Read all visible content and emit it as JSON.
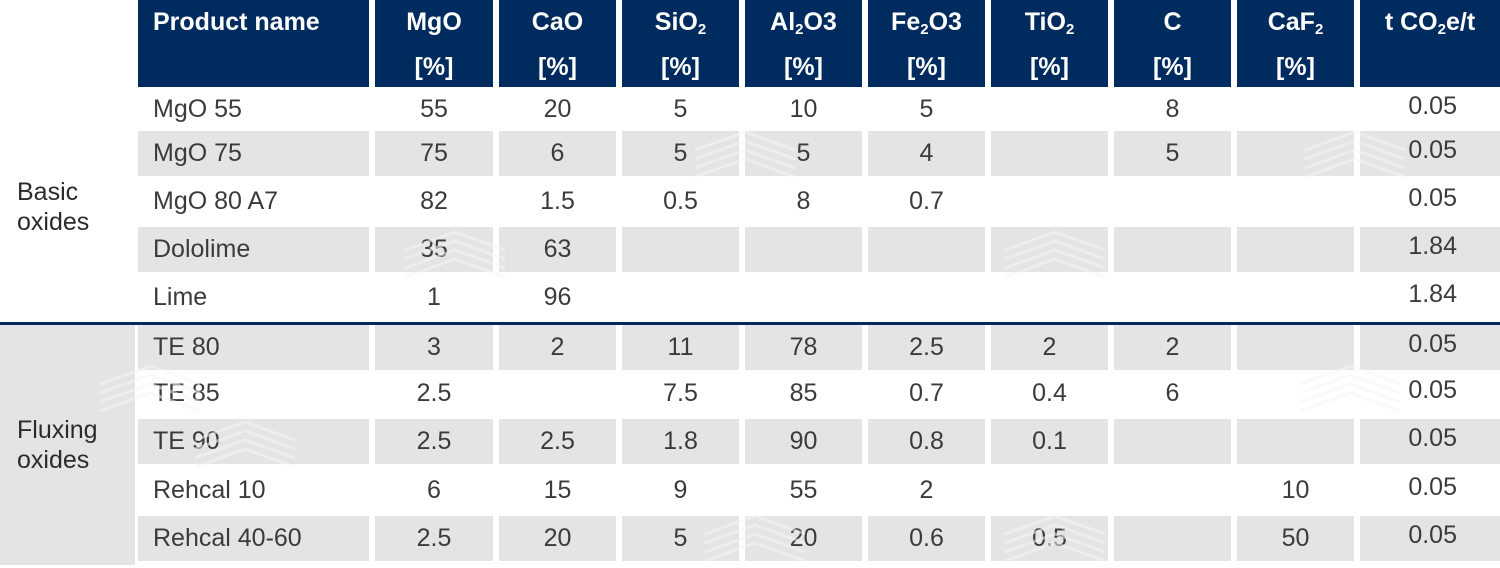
{
  "table": {
    "columns": [
      {
        "name": "Product name",
        "sub": "",
        "tail": "",
        "unit": ""
      },
      {
        "name": "MgO",
        "sub": "",
        "tail": "",
        "unit": "[%]"
      },
      {
        "name": "CaO",
        "sub": "",
        "tail": "",
        "unit": "[%]"
      },
      {
        "name": "SiO",
        "sub": "2",
        "tail": "",
        "unit": "[%]"
      },
      {
        "name": "Al",
        "sub": "2",
        "tail": "O3",
        "unit": "[%]"
      },
      {
        "name": "Fe",
        "sub": "2",
        "tail": "O3",
        "unit": "[%]"
      },
      {
        "name": "TiO",
        "sub": "2",
        "tail": "",
        "unit": "[%]"
      },
      {
        "name": "C",
        "sub": "",
        "tail": "",
        "unit": "[%]"
      },
      {
        "name": "CaF",
        "sub": "2",
        "tail": "",
        "unit": "[%]"
      },
      {
        "name": "t CO",
        "sub": "2",
        "tail": "e/t",
        "unit": ""
      }
    ],
    "groups": [
      {
        "label_line1": "Basic",
        "label_line2": "oxides"
      },
      {
        "label_line1": "Fluxing",
        "label_line2": "oxides"
      }
    ],
    "rows": [
      {
        "name": "MgO 55",
        "values": [
          "55",
          "20",
          "5",
          "10",
          "5",
          "",
          "8",
          "",
          "0.05"
        ]
      },
      {
        "name": "MgO 75",
        "values": [
          "75",
          "6",
          "5",
          "5",
          "4",
          "",
          "5",
          "",
          "0.05"
        ]
      },
      {
        "name": "MgO 80 A7",
        "values": [
          "82",
          "1.5",
          "0.5",
          "8",
          "0.7",
          "",
          "",
          "",
          "0.05"
        ]
      },
      {
        "name": "Dololime",
        "values": [
          "35",
          "63",
          "",
          "",
          "",
          "",
          "",
          "",
          "1.84"
        ]
      },
      {
        "name": "Lime",
        "values": [
          "1",
          "96",
          "",
          "",
          "",
          "",
          "",
          "",
          "1.84"
        ]
      },
      {
        "name": "TE 80",
        "values": [
          "3",
          "2",
          "11",
          "78",
          "2.5",
          "2",
          "2",
          "",
          "0.05"
        ]
      },
      {
        "name": "TE 85",
        "values": [
          "2.5",
          "",
          "7.5",
          "85",
          "0.7",
          "0.4",
          "6",
          "",
          "0.05"
        ]
      },
      {
        "name": "TE 90",
        "values": [
          "2.5",
          "2.5",
          "1.8",
          "90",
          "0.8",
          "0.1",
          "",
          "",
          "0.05"
        ]
      },
      {
        "name": "Rehcal 10",
        "values": [
          "6",
          "15",
          "9",
          "55",
          "2",
          "",
          "",
          "10",
          "0.05"
        ]
      },
      {
        "name": "Rehcal 40-60",
        "values": [
          "2.5",
          "20",
          "5",
          "20",
          "0.6",
          "0.5",
          "",
          "50",
          "0.05"
        ]
      }
    ]
  },
  "colors": {
    "header_bg": "#002b5e",
    "header_text": "#ffffff",
    "stripe": "#e4e4e4",
    "body_text": "#3b3b3b"
  }
}
